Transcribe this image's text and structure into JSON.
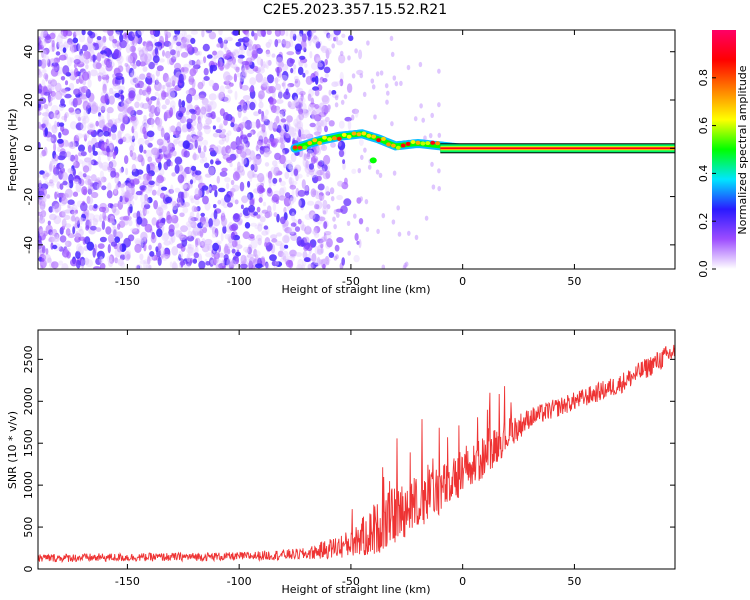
{
  "title": "C2E5.2023.357.15.52.R21",
  "chart_data": [
    {
      "type": "heatmap",
      "xlabel": "Height of straight line (km)",
      "ylabel": "Frequency (Hz)",
      "xlim": [
        -190,
        95
      ],
      "ylim": [
        -50,
        49
      ],
      "x_ticks": [
        -150,
        -100,
        -50,
        0,
        50
      ],
      "y_ticks": [
        -40,
        -20,
        0,
        20,
        40
      ],
      "colorbar": {
        "label": "Normalized spectral amplitude",
        "range": [
          0,
          1
        ],
        "ticks": [
          0.0,
          0.2,
          0.4,
          0.6,
          0.8
        ],
        "colors": [
          "#ffffff",
          "#9d4dff",
          "#2a1aff",
          "#00e6ff",
          "#00ff00",
          "#ffff00",
          "#ff8000",
          "#ff0000",
          "#ff0066"
        ]
      },
      "features": {
        "noise_region_x": [
          -190,
          -60
        ],
        "noise_typical_amplitude": 0.2,
        "signal_start_x": -75,
        "signal_line_frequency": 0,
        "signal_line_x": [
          -10,
          95
        ],
        "signal_line_amplitude": 0.9,
        "doppler_bump": [
          {
            "x": -75,
            "f": 0
          },
          {
            "x": -65,
            "f": 3
          },
          {
            "x": -55,
            "f": 5
          },
          {
            "x": -45,
            "f": 6
          },
          {
            "x": -38,
            "f": 4
          },
          {
            "x": -30,
            "f": 1
          },
          {
            "x": -20,
            "f": 2
          },
          {
            "x": -10,
            "f": 1
          },
          {
            "x": 0,
            "f": 0
          }
        ]
      }
    },
    {
      "type": "line",
      "xlabel": "Height of straight line (km)",
      "ylabel": "SNR (10 * v/v)",
      "xlim": [
        -190,
        95
      ],
      "ylim": [
        0,
        2850
      ],
      "x_ticks": [
        -150,
        -100,
        -50,
        0,
        50
      ],
      "y_ticks": [
        0,
        500,
        1000,
        1500,
        2000,
        2500
      ],
      "color": "#ee3333",
      "trend": [
        {
          "x": -190,
          "y": 130,
          "noise": 50
        },
        {
          "x": -100,
          "y": 150,
          "noise": 50
        },
        {
          "x": -70,
          "y": 180,
          "noise": 70
        },
        {
          "x": -50,
          "y": 300,
          "noise": 170
        },
        {
          "x": -40,
          "y": 450,
          "noise": 300
        },
        {
          "x": -30,
          "y": 650,
          "noise": 350
        },
        {
          "x": -20,
          "y": 800,
          "noise": 330
        },
        {
          "x": -10,
          "y": 950,
          "noise": 300
        },
        {
          "x": 0,
          "y": 1100,
          "noise": 280
        },
        {
          "x": 10,
          "y": 1350,
          "noise": 250
        },
        {
          "x": 20,
          "y": 1600,
          "noise": 200
        },
        {
          "x": 30,
          "y": 1800,
          "noise": 120
        },
        {
          "x": 50,
          "y": 2000,
          "noise": 110
        },
        {
          "x": 70,
          "y": 2200,
          "noise": 120
        },
        {
          "x": 95,
          "y": 2600,
          "noise": 130
        }
      ]
    }
  ]
}
